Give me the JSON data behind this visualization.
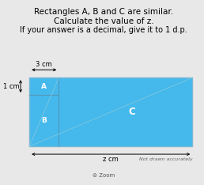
{
  "title_line1": "Rectangles A, B and C are similar.",
  "title_line2": "Calculate the value of z.",
  "title_line3": "If your answer is a decimal, give it to 1 d.p.",
  "bg_color": "#e8e8e8",
  "rect_fill": "#45b8ec",
  "rect_edge": "#7ab8d4",
  "label_A": "A",
  "label_B": "B",
  "label_C": "C",
  "dim_3cm": "3 cm",
  "dim_1cm": "1 cm",
  "dim_zcm": "z cm",
  "note": "Not drawn accurately",
  "zoom_text": "Zoom",
  "title_fontsize": 7.5,
  "label_fontsize": 6.5,
  "dim_fontsize": 6.0,
  "note_fontsize": 4.5
}
